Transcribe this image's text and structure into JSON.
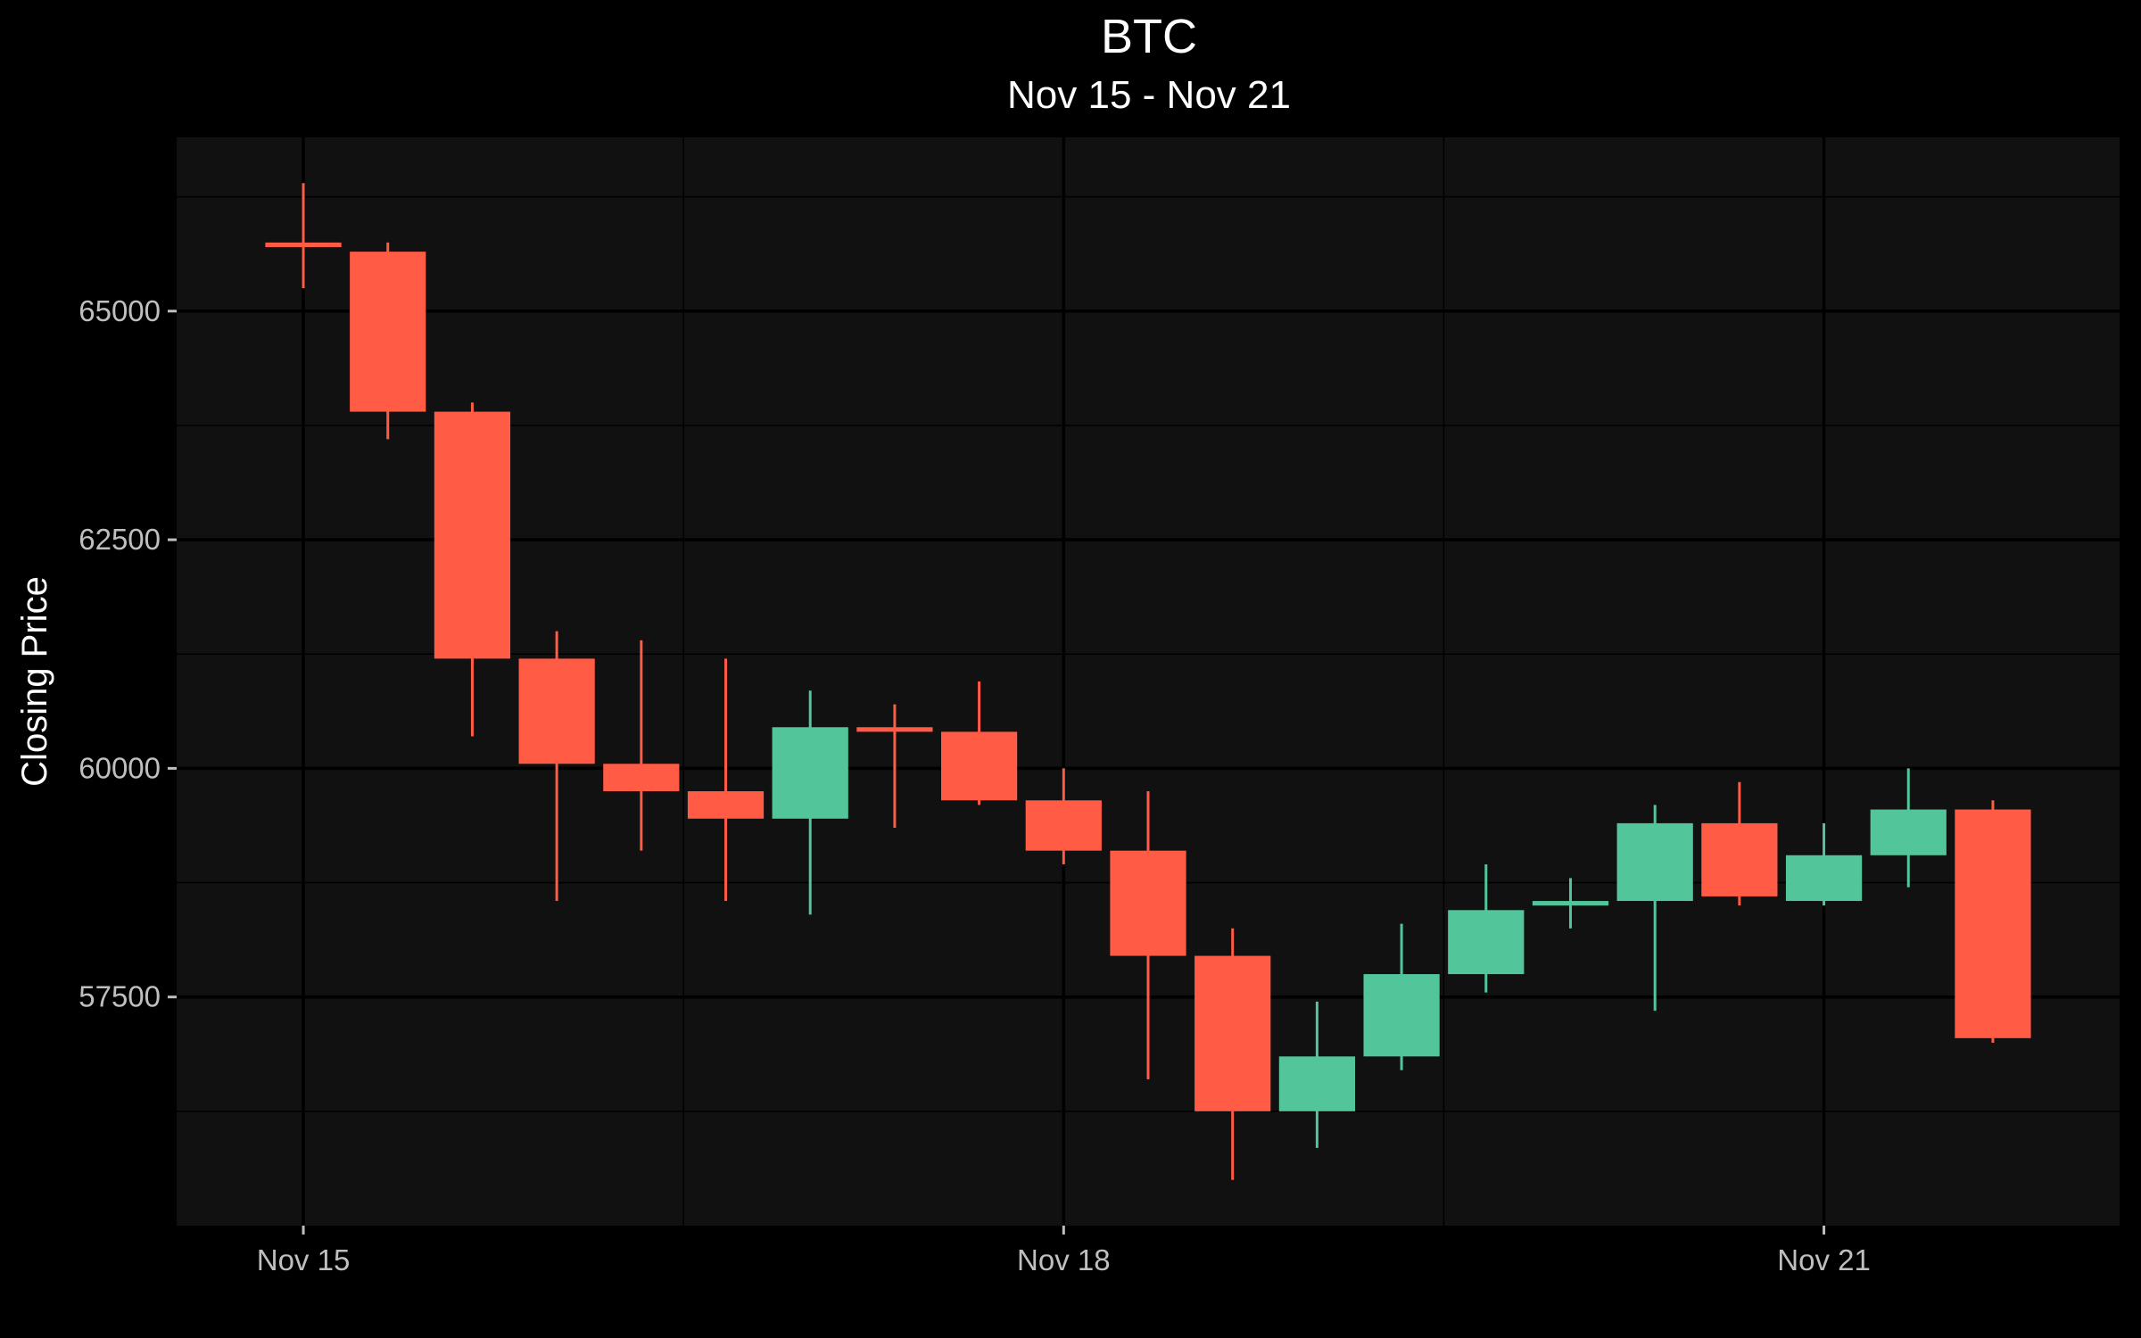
{
  "chart_data": {
    "type": "candlestick",
    "title": "BTC",
    "subtitle": "Nov 15 - Nov 21",
    "ylabel": "Closing Price",
    "xlabel": "",
    "ylim": [
      55000,
      66900
    ],
    "yticks": [
      57500,
      60000,
      62500,
      65000
    ],
    "ytick_labels": [
      "57500",
      "60000",
      "62500",
      "65000"
    ],
    "xlim": [
      -1.5,
      21.5
    ],
    "xticks": [
      {
        "index": 0,
        "label": "Nov 15"
      },
      {
        "index": 9,
        "label": "Nov 18"
      },
      {
        "index": 18,
        "label": "Nov 21"
      }
    ],
    "x_minor_grid": [
      4.5,
      13.5
    ],
    "y_minor_grid": [
      56250,
      58750,
      61250,
      63750,
      66250
    ],
    "grid": true,
    "legend": "none",
    "colors": {
      "up": "#52c69a",
      "down": "#ff5b45",
      "panel": "#111111",
      "background": "#000000",
      "grid_major": "#000000",
      "grid_minor": "#000000"
    },
    "candles": [
      {
        "open": 65750,
        "high": 66400,
        "low": 65250,
        "close": 65700
      },
      {
        "open": 65650,
        "high": 65750,
        "low": 63600,
        "close": 63900
      },
      {
        "open": 63900,
        "high": 64000,
        "low": 60350,
        "close": 61200
      },
      {
        "open": 61200,
        "high": 61500,
        "low": 58550,
        "close": 60050
      },
      {
        "open": 60050,
        "high": 61400,
        "low": 59100,
        "close": 59750
      },
      {
        "open": 59750,
        "high": 61200,
        "low": 58550,
        "close": 59450
      },
      {
        "open": 59450,
        "high": 60850,
        "low": 58400,
        "close": 60450
      },
      {
        "open": 60450,
        "high": 60700,
        "low": 59350,
        "close": 60400
      },
      {
        "open": 60400,
        "high": 60950,
        "low": 59600,
        "close": 59650
      },
      {
        "open": 59650,
        "high": 60000,
        "low": 58950,
        "close": 59100
      },
      {
        "open": 59100,
        "high": 59750,
        "low": 56600,
        "close": 57950
      },
      {
        "open": 57950,
        "high": 58250,
        "low": 55500,
        "close": 56250
      },
      {
        "open": 56250,
        "high": 57450,
        "low": 55850,
        "close": 56850
      },
      {
        "open": 56850,
        "high": 58300,
        "low": 56700,
        "close": 57750
      },
      {
        "open": 57750,
        "high": 58950,
        "low": 57550,
        "close": 58450
      },
      {
        "open": 58500,
        "high": 58800,
        "low": 58250,
        "close": 58550
      },
      {
        "open": 58550,
        "high": 59600,
        "low": 57350,
        "close": 59400
      },
      {
        "open": 59400,
        "high": 59850,
        "low": 58500,
        "close": 58600
      },
      {
        "open": 58550,
        "high": 59400,
        "low": 58500,
        "close": 59050
      },
      {
        "open": 59050,
        "high": 60000,
        "low": 58700,
        "close": 59550
      },
      {
        "open": 59550,
        "high": 59650,
        "low": 57000,
        "close": 57050
      }
    ]
  }
}
